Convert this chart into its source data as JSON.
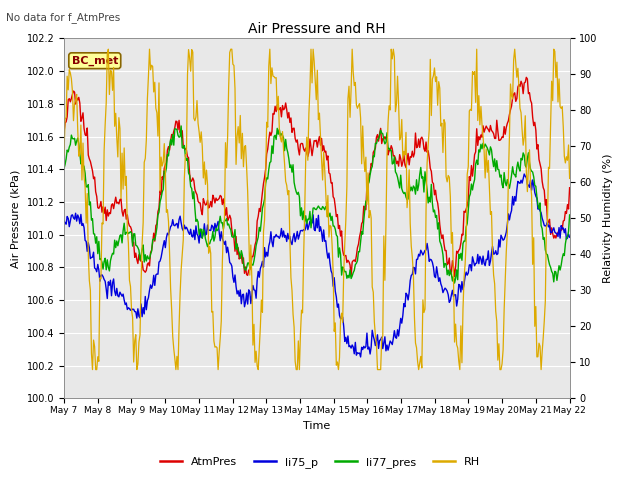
{
  "title": "Air Pressure and RH",
  "subtitle": "No data for f_AtmPres",
  "xlabel": "Time",
  "ylabel_left": "Air Pressure (kPa)",
  "ylabel_right": "Relativity Humidity (%)",
  "annotation": "BC_met",
  "ylim_left": [
    100.0,
    102.2
  ],
  "ylim_right": [
    0,
    100
  ],
  "yticks_left": [
    100.0,
    100.2,
    100.4,
    100.6,
    100.8,
    101.0,
    101.2,
    101.4,
    101.6,
    101.8,
    102.0,
    102.2
  ],
  "yticks_right": [
    0,
    10,
    20,
    30,
    40,
    50,
    60,
    70,
    80,
    90,
    100
  ],
  "xtick_labels": [
    "May 7",
    "May 8",
    "May 9",
    "May 10",
    "May 11",
    "May 12",
    "May 13",
    "May 14",
    "May 15",
    "May 16",
    "May 17",
    "May 18",
    "May 19",
    "May 20",
    "May 21",
    "May 22"
  ],
  "color_atmpres": "#dd0000",
  "color_li75p": "#0000dd",
  "color_li77pres": "#00aa00",
  "color_rh": "#ddaa00",
  "legend_labels": [
    "AtmPres",
    "li75_p",
    "li77_pres",
    "RH"
  ],
  "bg_color": "#e8e8e8",
  "grid_color": "#ffffff",
  "n_points": 480
}
